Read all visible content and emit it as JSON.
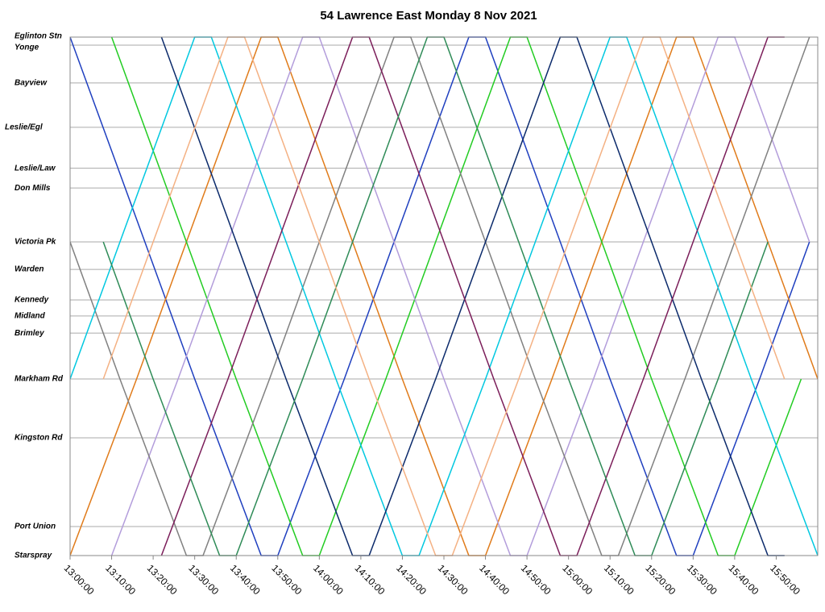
{
  "chart_data": {
    "type": "line",
    "title": "54 Lawrence East Monday 8 Nov 2021",
    "xlim": [
      "13:00:00",
      "16:00:00"
    ],
    "xticks": [
      "13:00:00",
      "13:10:00",
      "13:20:00",
      "13:30:00",
      "13:40:00",
      "13:50:00",
      "14:00:00",
      "14:10:00",
      "14:20:00",
      "14:30:00",
      "14:40:00",
      "14:50:00",
      "15:00:00",
      "15:10:00",
      "15:20:00",
      "15:30:00",
      "15:40:00",
      "15:50:00"
    ],
    "ylim": [
      20,
      0
    ],
    "yticks": [
      {
        "value": 0,
        "label": "Eglinton Stn"
      },
      {
        "value": 0.31,
        "label": "Yonge"
      },
      {
        "value": 1.77,
        "label": "Bayview"
      },
      {
        "value": 3.48,
        "label": "Leslie/Egl"
      },
      {
        "value": 5.06,
        "label": "Leslie/Law"
      },
      {
        "value": 5.82,
        "label": "Don Mills"
      },
      {
        "value": 7.9,
        "label": "Victoria Pk"
      },
      {
        "value": 8.96,
        "label": "Warden"
      },
      {
        "value": 10.14,
        "label": "Kennedy"
      },
      {
        "value": 10.76,
        "label": "Midland"
      },
      {
        "value": 11.42,
        "label": "Brimley"
      },
      {
        "value": 13.19,
        "label": "Markham Rd"
      },
      {
        "value": 15.46,
        "label": "Kingston Rd"
      },
      {
        "value": 18.88,
        "label": "Port Union"
      },
      {
        "value": 20,
        "label": "Starspray"
      }
    ],
    "grid": true,
    "series": [
      {
        "color": "#1f3fbf",
        "x": [
          "13:00:00",
          "13:18:00",
          "13:30:00",
          "13:46:00",
          "13:50:00",
          "14:06:00",
          "14:18:00",
          "14:36:00",
          "14:40:00",
          "14:58:00",
          "15:10:00",
          "15:26:00",
          "15:30:00",
          "15:46:00",
          "15:58:00"
        ],
        "values": [
          0,
          7.9,
          13.19,
          20,
          20,
          13.19,
          7.9,
          0,
          0,
          7.9,
          13.19,
          20,
          20,
          13.19,
          7.9
        ]
      },
      {
        "color": "#e07b1a",
        "x": [
          "13:00:00",
          "13:16:00",
          "13:28:00",
          "13:46:00",
          "13:50:00",
          "14:08:00",
          "14:20:00",
          "14:36:00",
          "14:40:00",
          "14:56:00",
          "15:08:00",
          "15:26:00",
          "15:30:00",
          "15:48:00",
          "16:00:00"
        ],
        "values": [
          20,
          13.19,
          7.9,
          0,
          0,
          7.9,
          13.19,
          20,
          20,
          13.19,
          7.9,
          0,
          0,
          7.9,
          13.19
        ]
      },
      {
        "color": "#22cc22",
        "x": [
          "13:10:00",
          "13:28:00",
          "13:40:00",
          "13:56:00",
          "14:00:00",
          "14:16:00",
          "14:28:00",
          "14:46:00",
          "14:50:00",
          "15:08:00",
          "15:20:00",
          "15:36:00",
          "15:40:00",
          "15:56:00"
        ],
        "values": [
          0,
          7.9,
          13.19,
          20,
          20,
          13.19,
          7.9,
          0,
          0,
          7.9,
          13.19,
          20,
          20,
          13.19
        ]
      },
      {
        "color": "#b39ddb",
        "x": [
          "13:10:00",
          "13:26:00",
          "13:38:00",
          "13:56:00",
          "14:00:00",
          "14:18:00",
          "14:30:00",
          "14:46:00",
          "14:50:00",
          "15:06:00",
          "15:18:00",
          "15:36:00",
          "15:40:00",
          "15:58:00"
        ],
        "values": [
          20,
          13.19,
          7.9,
          0,
          0,
          7.9,
          13.19,
          20,
          20,
          13.19,
          7.9,
          0,
          0,
          7.9
        ]
      },
      {
        "color": "#808080",
        "x": [
          "13:00:00",
          "13:12:00",
          "13:28:00",
          "13:32:00",
          "13:48:00",
          "14:00:00",
          "14:18:00",
          "14:22:00",
          "14:40:00",
          "14:52:00",
          "15:08:00",
          "15:12:00",
          "15:28:00",
          "15:40:00",
          "15:58:00"
        ],
        "values": [
          7.9,
          13.19,
          20,
          20,
          13.19,
          7.9,
          0,
          0,
          7.9,
          13.19,
          20,
          20,
          13.19,
          7.9,
          0
        ]
      },
      {
        "color": "#00c8e0",
        "x": [
          "13:00:00",
          "13:12:00",
          "13:30:00",
          "13:34:00",
          "13:52:00",
          "14:04:00",
          "14:20:00",
          "14:24:00",
          "14:40:00",
          "14:52:00",
          "15:10:00",
          "15:14:00",
          "15:32:00",
          "15:44:00",
          "16:00:00"
        ],
        "values": [
          13.19,
          7.9,
          0,
          0,
          7.9,
          13.19,
          20,
          20,
          13.19,
          7.9,
          0,
          0,
          7.9,
          13.19,
          20
        ]
      },
      {
        "color": "#0b2a6b",
        "x": [
          "13:22:00",
          "13:40:00",
          "13:52:00",
          "14:08:00",
          "14:12:00",
          "14:28:00",
          "14:40:00",
          "14:58:00",
          "15:02:00",
          "15:20:00",
          "15:32:00",
          "15:48:00",
          "15:52:00"
        ],
        "values": [
          0,
          7.9,
          13.19,
          20,
          20,
          13.19,
          7.9,
          0,
          0,
          7.9,
          13.19,
          20,
          20
        ]
      },
      {
        "color": "#7b1e5a",
        "x": [
          "13:22:00",
          "13:38:00",
          "13:50:00",
          "14:08:00",
          "14:12:00",
          "14:30:00",
          "14:42:00",
          "14:58:00",
          "15:02:00",
          "15:18:00",
          "15:30:00",
          "15:48:00",
          "15:52:00"
        ],
        "values": [
          20,
          13.19,
          7.9,
          0,
          0,
          7.9,
          13.19,
          20,
          20,
          13.19,
          7.9,
          0,
          0
        ]
      },
      {
        "color": "#2e8b57",
        "x": [
          "13:08:00",
          "13:20:00",
          "13:36:00",
          "13:40:00",
          "13:56:00",
          "14:08:00",
          "14:26:00",
          "14:30:00",
          "14:48:00",
          "15:00:00",
          "15:16:00",
          "15:20:00",
          "15:36:00",
          "15:48:00"
        ],
        "values": [
          7.9,
          13.19,
          20,
          20,
          13.19,
          7.9,
          0,
          0,
          7.9,
          13.19,
          20,
          20,
          13.19,
          7.9
        ]
      },
      {
        "color": "#f4b183",
        "x": [
          "13:08:00",
          "13:20:00",
          "13:38:00",
          "13:42:00",
          "14:00:00",
          "14:12:00",
          "14:28:00",
          "14:32:00",
          "14:48:00",
          "15:00:00",
          "15:18:00",
          "15:22:00",
          "15:40:00",
          "15:52:00"
        ],
        "values": [
          13.19,
          7.9,
          0,
          0,
          7.9,
          13.19,
          20,
          20,
          13.19,
          7.9,
          0,
          0,
          7.9,
          13.19
        ]
      }
    ]
  }
}
